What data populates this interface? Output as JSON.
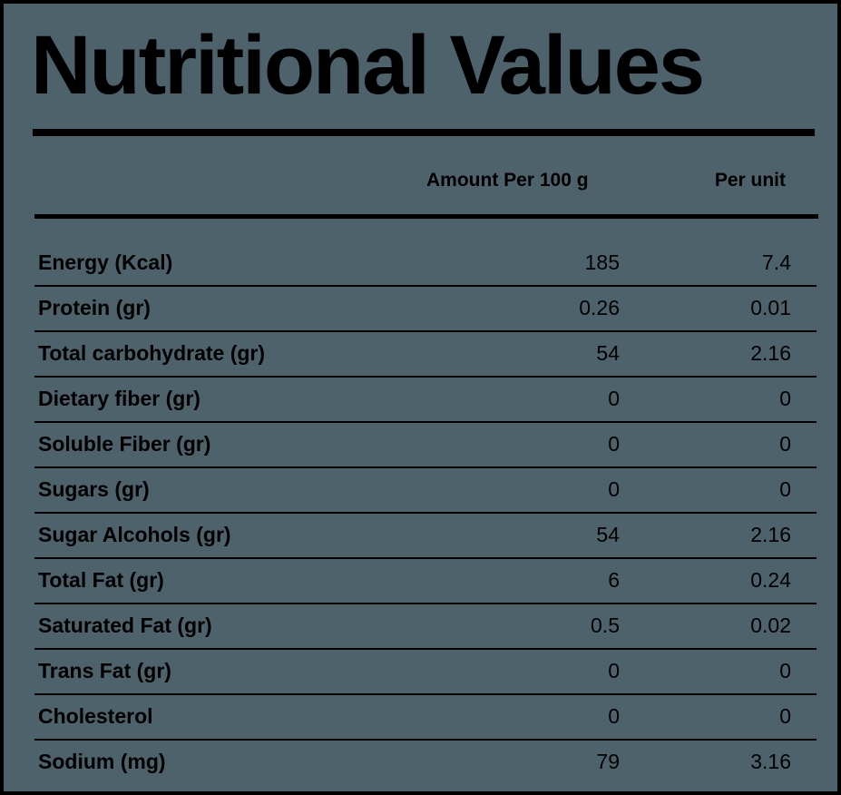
{
  "title": "Nutritional Values",
  "columns": {
    "amount": "Amount Per 100 g",
    "unit": "Per unit"
  },
  "rows": [
    {
      "label": "Energy (Kcal)",
      "amount": "185",
      "unit": "7.4"
    },
    {
      "label": "Protein (gr)",
      "amount": "0.26",
      "unit": "0.01"
    },
    {
      "label": "Total carbohydrate (gr)",
      "amount": "54",
      "unit": "2.16"
    },
    {
      "label": "Dietary fiber (gr)",
      "amount": "0",
      "unit": "0"
    },
    {
      "label": "Soluble Fiber (gr)",
      "amount": "0",
      "unit": "0"
    },
    {
      "label": "Sugars (gr)",
      "amount": "0",
      "unit": "0"
    },
    {
      "label": "Sugar Alcohols (gr)",
      "amount": "54",
      "unit": "2.16"
    },
    {
      "label": "Total Fat (gr)",
      "amount": "6",
      "unit": "0.24"
    },
    {
      "label": "Saturated Fat (gr)",
      "amount": "0.5",
      "unit": "0.02"
    },
    {
      "label": "Trans Fat (gr)",
      "amount": "0",
      "unit": "0"
    },
    {
      "label": "Cholesterol",
      "amount": "0",
      "unit": "0"
    },
    {
      "label": "Sodium (mg)",
      "amount": "79",
      "unit": "3.16"
    }
  ]
}
